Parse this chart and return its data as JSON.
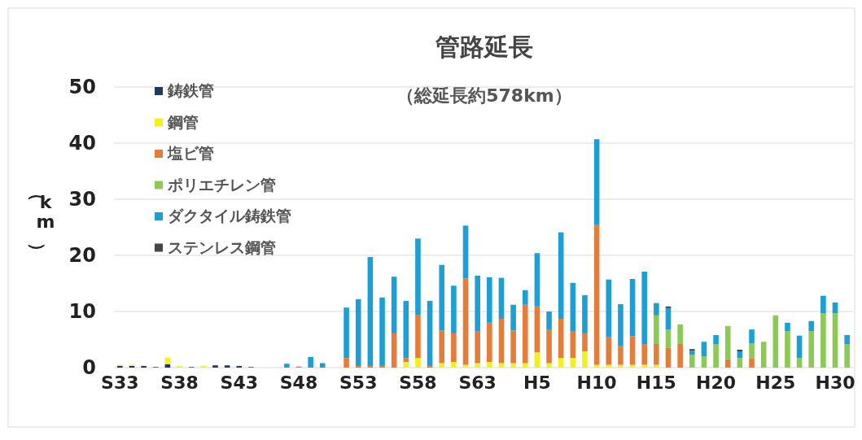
{
  "chart_data": {
    "type": "bar",
    "title": "管路延長",
    "subtitle": "（総延長約578km）",
    "ylabel": "（km）",
    "stacked": true,
    "grid": "y",
    "legend": "top left",
    "ylim": [
      0,
      50
    ],
    "yticks": [
      0,
      10,
      20,
      30,
      40,
      50
    ],
    "categories": [
      "S33",
      null,
      null,
      null,
      null,
      "S38",
      null,
      null,
      null,
      null,
      "S43",
      null,
      null,
      null,
      null,
      "S48",
      null,
      null,
      null,
      null,
      "S53",
      null,
      null,
      null,
      null,
      "S58",
      null,
      null,
      null,
      null,
      "S63",
      null,
      null,
      null,
      null,
      "H5",
      null,
      null,
      null,
      null,
      "H10",
      null,
      null,
      null,
      null,
      "H15",
      null,
      null,
      null,
      null,
      "H20",
      null,
      null,
      null,
      null,
      "H25",
      null,
      null,
      null,
      null,
      "H30",
      null
    ],
    "series": [
      {
        "name": "鋳鉄管",
        "color": "#1f3864",
        "values": [
          0.3,
          0.3,
          0.3,
          0.1,
          0.6,
          null,
          0.1,
          null,
          0.4,
          0.4,
          0.3,
          0.1,
          null,
          null,
          null,
          null,
          null,
          null,
          null,
          null,
          null,
          null,
          null,
          null,
          null,
          null,
          null,
          null,
          null,
          null,
          null,
          null,
          null,
          null,
          null,
          null,
          null,
          null,
          null,
          null,
          null,
          null,
          null,
          null,
          null,
          null,
          null,
          null,
          null,
          null,
          null,
          null,
          null,
          null,
          null,
          null,
          null,
          null,
          null,
          null,
          null,
          null
        ]
      },
      {
        "name": "鋼管",
        "color": "#f2f21a",
        "values": [
          0.2,
          0.2,
          null,
          null,
          1.2,
          0.3,
          null,
          0.3,
          null,
          null,
          null,
          null,
          null,
          null,
          null,
          null,
          null,
          null,
          null,
          null,
          null,
          null,
          null,
          null,
          1.0,
          1.7,
          null,
          0.8,
          1.0,
          0.5,
          0.8,
          1.0,
          0.8,
          0.8,
          0.8,
          2.7,
          0.8,
          1.7,
          1.7,
          2.9,
          0.5,
          0.5,
          0.5,
          0.5,
          0.5,
          0.5,
          null,
          null,
          null,
          null,
          null,
          null,
          null,
          null,
          null,
          null,
          null,
          null,
          null,
          null,
          null,
          null
        ]
      },
      {
        "name": "塩ビ管",
        "color": "#e57d3a",
        "values": [
          null,
          null,
          null,
          null,
          null,
          null,
          null,
          null,
          null,
          null,
          null,
          null,
          null,
          null,
          null,
          0.2,
          null,
          null,
          null,
          1.7,
          0.3,
          0.3,
          0.3,
          6.1,
          0.7,
          7.7,
          0.3,
          5.8,
          5.1,
          15.4,
          5.7,
          7.0,
          7.9,
          5.8,
          10.4,
          8.2,
          6.0,
          7.0,
          4.7,
          3.2,
          24.9,
          4.9,
          3.4,
          5.1,
          3.7,
          3.7,
          3.5,
          4.2,
          null,
          null,
          null,
          1.5,
          null,
          1.7,
          null,
          null,
          null,
          null,
          null,
          null,
          null,
          null
        ]
      },
      {
        "name": "ポリエチレン管",
        "color": "#8cc955",
        "values": [
          null,
          null,
          null,
          null,
          null,
          null,
          null,
          null,
          null,
          null,
          null,
          null,
          null,
          null,
          null,
          null,
          null,
          null,
          null,
          null,
          null,
          null,
          null,
          null,
          null,
          null,
          null,
          null,
          null,
          null,
          null,
          null,
          null,
          null,
          null,
          null,
          null,
          null,
          null,
          null,
          null,
          null,
          null,
          null,
          null,
          5.1,
          3.3,
          3.5,
          2.3,
          2.0,
          4.2,
          5.9,
          1.7,
          2.6,
          4.6,
          9.3,
          6.5,
          1.7,
          6.5,
          9.7,
          9.7,
          4.2
        ]
      },
      {
        "name": "ダクタイル鋳鉄管",
        "color": "#1d9fd6",
        "values": [
          null,
          null,
          null,
          null,
          null,
          null,
          null,
          null,
          null,
          null,
          null,
          null,
          null,
          null,
          0.7,
          null,
          1.9,
          0.8,
          null,
          9.0,
          11.9,
          19.4,
          12.2,
          10.1,
          10.2,
          13.6,
          11.6,
          11.7,
          8.5,
          9.4,
          9.9,
          8.1,
          7.3,
          4.6,
          2.6,
          9.5,
          3.2,
          15.4,
          8.7,
          6.8,
          15.3,
          10.3,
          7.4,
          10.2,
          12.9,
          2.2,
          3.8,
          null,
          0.7,
          2.6,
          1.6,
          null,
          1.2,
          2.5,
          null,
          null,
          1.5,
          4.0,
          1.8,
          3.1,
          1.9,
          1.6
        ]
      },
      {
        "name": "ステンレス鋼管",
        "color": "#454545",
        "values": [
          null,
          null,
          null,
          null,
          null,
          null,
          null,
          null,
          null,
          null,
          null,
          null,
          null,
          null,
          null,
          null,
          null,
          null,
          null,
          null,
          null,
          null,
          null,
          null,
          null,
          null,
          null,
          null,
          null,
          null,
          null,
          null,
          null,
          null,
          null,
          null,
          null,
          null,
          null,
          null,
          null,
          null,
          null,
          null,
          null,
          null,
          0.3,
          null,
          0.3,
          null,
          null,
          null,
          0.3,
          null,
          null,
          null,
          null,
          null,
          null,
          null,
          null,
          null
        ]
      }
    ]
  }
}
